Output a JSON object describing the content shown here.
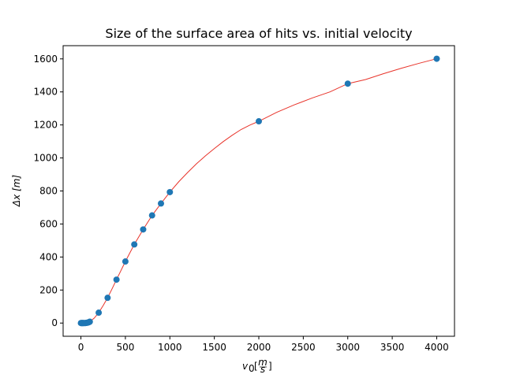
{
  "chart_data": {
    "type": "scatter",
    "title": "Size of the surface area of hits vs. initial velocity",
    "xlabel_main": "v",
    "xlabel_sub": "0",
    "xlabel_unit_num": "m",
    "xlabel_unit_den": "s",
    "ylabel": "Δx [m]",
    "xlim": [
      -200,
      4200
    ],
    "ylim": [
      -80,
      1680
    ],
    "xticks": [
      0,
      500,
      1000,
      1500,
      2000,
      2500,
      3000,
      3500,
      4000
    ],
    "yticks": [
      0,
      200,
      400,
      600,
      800,
      1000,
      1200,
      1400,
      1600
    ],
    "grid": false,
    "colors": {
      "points": "#1f77b4",
      "fit": "#e8332a"
    },
    "series": [
      {
        "kind": "points",
        "x": [
          0,
          5,
          10,
          15,
          20,
          25,
          30,
          40,
          50,
          60,
          70,
          80,
          90,
          100,
          200,
          300,
          400,
          500,
          600,
          700,
          800,
          900,
          1000,
          2000,
          3000,
          4000
        ],
        "y": [
          0,
          0,
          0,
          0,
          0,
          0,
          0,
          0,
          0,
          1,
          2,
          3,
          5,
          8,
          63,
          153,
          263,
          373,
          476,
          567,
          652,
          724,
          793,
          1222,
          1450,
          1601
        ]
      },
      {
        "kind": "fit-line",
        "x": [
          0,
          50,
          100,
          150,
          200,
          250,
          300,
          350,
          400,
          450,
          500,
          600,
          700,
          800,
          900,
          1000,
          1100,
          1200,
          1300,
          1400,
          1500,
          1600,
          1700,
          1800,
          1900,
          2000,
          2200,
          2400,
          2600,
          2800,
          3000,
          3200,
          3400,
          3600,
          3800,
          4000
        ],
        "y": [
          0,
          1,
          8,
          30,
          63,
          106,
          153,
          207,
          263,
          318,
          373,
          476,
          567,
          652,
          724,
          793,
          856,
          912,
          965,
          1013,
          1057,
          1099,
          1137,
          1172,
          1199,
          1222,
          1276,
          1322,
          1363,
          1400,
          1450,
          1475,
          1510,
          1543,
          1573,
          1601
        ]
      }
    ]
  }
}
